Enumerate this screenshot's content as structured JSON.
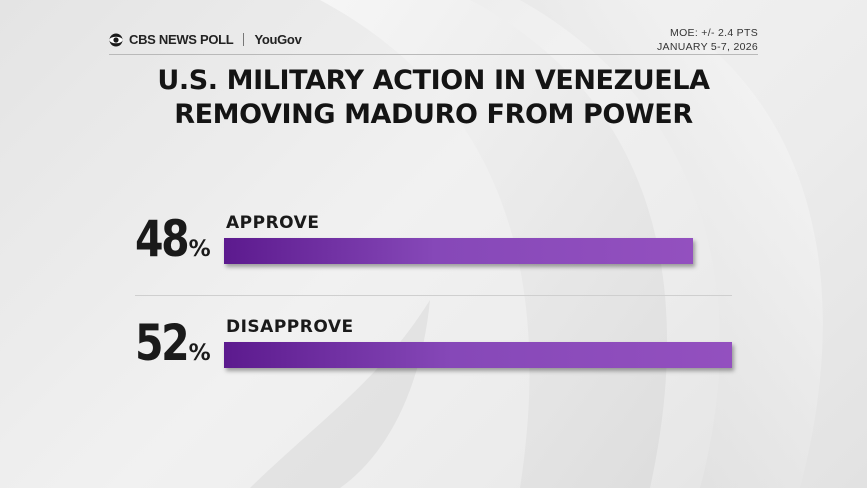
{
  "header": {
    "brand_cbs": "CBS NEWS POLL",
    "brand_partner": "YouGov",
    "moe": "MOE: +/- 2.4 PTS",
    "dates": "JANUARY 5-7, 2026"
  },
  "chart_data": {
    "type": "bar",
    "title_lines": [
      "U.S. MILITARY ACTION IN VENEZUELA",
      "REMOVING MADURO FROM POWER"
    ],
    "categories": [
      "APPROVE",
      "DISAPPROVE"
    ],
    "values": [
      48,
      52
    ],
    "value_labels": [
      "48",
      "52"
    ],
    "unit": "%",
    "xlim": [
      0,
      52
    ],
    "bar_color": "#8648b8",
    "grid": false
  }
}
